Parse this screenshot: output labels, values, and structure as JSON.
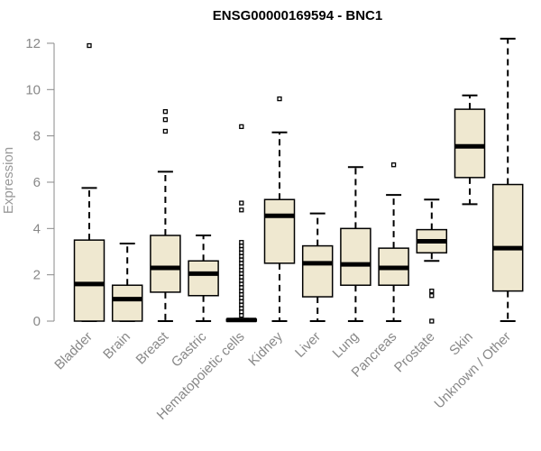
{
  "chart_data": {
    "type": "boxplot",
    "title": "ENSG00000169594 - BNC1",
    "xlabel": "",
    "ylabel": "Expression",
    "ylim": [
      0,
      12.3
    ],
    "yticks": [
      0,
      2,
      4,
      6,
      8,
      10,
      12
    ],
    "grid": false,
    "box_fill": "#efe8d0",
    "box_stroke": "#000000",
    "categories": [
      "Bladder",
      "Brain",
      "Breast",
      "Gastric",
      "Hematopoietic cells",
      "Kidney",
      "Liver",
      "Lung",
      "Pancreas",
      "Prostate",
      "Skin",
      "Unknown / Other"
    ],
    "boxes": [
      {
        "min": 0,
        "q1": 0,
        "median": 1.6,
        "q3": 3.5,
        "max": 5.75,
        "outliers": [
          11.9
        ]
      },
      {
        "min": 0,
        "q1": 0,
        "median": 0.95,
        "q3": 1.55,
        "max": 3.35,
        "outliers": []
      },
      {
        "min": 0,
        "q1": 1.25,
        "median": 2.3,
        "q3": 3.7,
        "max": 6.45,
        "outliers": [
          8.2,
          8.7,
          9.05
        ]
      },
      {
        "min": 0,
        "q1": 1.1,
        "median": 2.05,
        "q3": 2.6,
        "max": 3.7,
        "outliers": []
      },
      {
        "min": 0,
        "q1": 0,
        "median": 0.05,
        "q3": 0.08,
        "max": 0.1,
        "outliers": [
          0.25,
          0.4,
          0.55,
          0.7,
          0.85,
          1.0,
          1.15,
          1.3,
          1.45,
          1.6,
          1.75,
          1.9,
          2.05,
          2.2,
          2.35,
          2.5,
          2.65,
          2.8,
          2.95,
          3.1,
          3.25,
          3.4,
          4.8,
          5.1,
          8.4
        ]
      },
      {
        "min": 0,
        "q1": 2.5,
        "median": 4.55,
        "q3": 5.25,
        "max": 8.15,
        "outliers": [
          9.6
        ]
      },
      {
        "min": 0,
        "q1": 1.05,
        "median": 2.5,
        "q3": 3.25,
        "max": 4.65,
        "outliers": []
      },
      {
        "min": 0,
        "q1": 1.55,
        "median": 2.45,
        "q3": 4.0,
        "max": 6.65,
        "outliers": []
      },
      {
        "min": 0,
        "q1": 1.55,
        "median": 2.3,
        "q3": 3.15,
        "max": 5.45,
        "outliers": [
          6.75
        ]
      },
      {
        "min": 2.6,
        "q1": 2.95,
        "median": 3.45,
        "q3": 3.95,
        "max": 5.25,
        "outliers": [
          0,
          1.1,
          1.3
        ]
      },
      {
        "min": 5.05,
        "q1": 6.2,
        "median": 7.55,
        "q3": 9.15,
        "max": 9.75,
        "outliers": []
      },
      {
        "min": 0,
        "q1": 1.3,
        "median": 3.15,
        "q3": 5.9,
        "max": 12.2,
        "outliers": []
      }
    ]
  }
}
